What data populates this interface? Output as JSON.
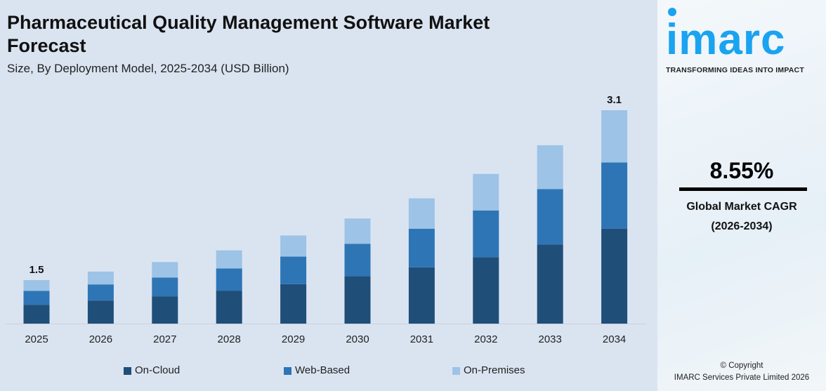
{
  "header": {
    "title": "Pharmaceutical Quality Management Software Market Forecast",
    "subtitle": "Size, By Deployment Model, 2025-2034 (USD Billion)"
  },
  "chart_data": {
    "type": "bar",
    "stacked": true,
    "title": "Pharmaceutical Quality Management Software Market Forecast",
    "subtitle": "Size, By Deployment Model, 2025-2034 (USD Billion)",
    "categories": [
      "2025",
      "2026",
      "2027",
      "2028",
      "2029",
      "2030",
      "2031",
      "2032",
      "2033",
      "2034"
    ],
    "series": [
      {
        "name": "On-Cloud",
        "color": "#1f4e79",
        "values": [
          0.65,
          0.7,
          0.74,
          0.8,
          0.86,
          0.94,
          1.02,
          1.11,
          1.23,
          1.38
        ]
      },
      {
        "name": "Web-Based",
        "color": "#2e75b6",
        "values": [
          0.48,
          0.49,
          0.51,
          0.54,
          0.6,
          0.64,
          0.7,
          0.78,
          0.86,
          0.96
        ]
      },
      {
        "name": "On-Premises",
        "color": "#9dc3e6",
        "values": [
          0.37,
          0.39,
          0.42,
          0.44,
          0.46,
          0.5,
          0.55,
          0.61,
          0.68,
          0.76
        ]
      }
    ],
    "totals": [
      1.5,
      1.58,
      1.67,
      1.78,
      1.92,
      2.08,
      2.27,
      2.5,
      2.77,
      3.1
    ],
    "data_labels": {
      "2025": "1.5",
      "2034": "3.1"
    },
    "legend": "bottom",
    "grid": false,
    "y_axis_visible": false
  },
  "sidebar": {
    "brand": "imarc",
    "tagline": "TRANSFORMING IDEAS INTO IMPACT",
    "cagr": "8.55%",
    "cagr_label": "Global Market CAGR",
    "cagr_period": "(2026-2034)",
    "copyright": "© Copyright",
    "company": "IMARC Services Private Limited 2026"
  }
}
